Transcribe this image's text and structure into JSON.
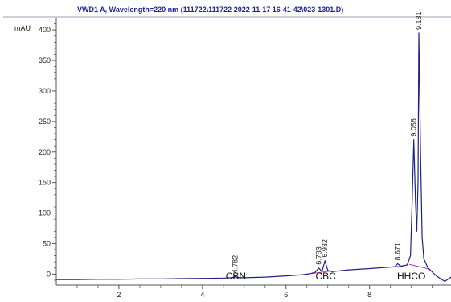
{
  "chart_data": {
    "type": "line",
    "title": "VWD1 A, Wavelength=220 nm (111722\\111722 2022-11-17 16-41-42\\023-1301.D)",
    "ylabel": "mAU",
    "xlim": [
      0.5,
      9.95
    ],
    "ylim": [
      -18,
      420
    ],
    "x_ticks": [
      2,
      4,
      6,
      8
    ],
    "y_ticks": [
      0,
      50,
      100,
      150,
      200,
      250,
      300,
      350,
      400
    ],
    "grid": false,
    "colors": {
      "title": "#1f1fa0",
      "trace": "#20208a",
      "baseline": "#c030c0",
      "axis": "#555555"
    },
    "series": [
      {
        "values": [
          [
            0.5,
            -9
          ],
          [
            1.0,
            -9
          ],
          [
            1.5,
            -8.5
          ],
          [
            2.0,
            -8.5
          ],
          [
            2.5,
            -8
          ],
          [
            3.0,
            -8
          ],
          [
            3.5,
            -7.5
          ],
          [
            4.0,
            -7
          ],
          [
            4.5,
            -6.5
          ],
          [
            4.7,
            -6
          ],
          [
            4.78,
            -4
          ],
          [
            4.85,
            -6
          ],
          [
            5.0,
            -6
          ],
          [
            5.5,
            -5
          ],
          [
            6.0,
            -3
          ],
          [
            6.4,
            -1
          ],
          [
            6.6,
            1
          ],
          [
            6.7,
            3
          ],
          [
            6.783,
            10
          ],
          [
            6.86,
            4
          ],
          [
            6.932,
            22
          ],
          [
            7.0,
            6
          ],
          [
            7.1,
            4
          ],
          [
            7.5,
            7
          ],
          [
            8.0,
            9
          ],
          [
            8.4,
            11
          ],
          [
            8.6,
            12
          ],
          [
            8.671,
            17
          ],
          [
            8.75,
            13
          ],
          [
            8.9,
            15
          ],
          [
            8.98,
            30
          ],
          [
            9.02,
            120
          ],
          [
            9.058,
            220
          ],
          [
            9.1,
            120
          ],
          [
            9.13,
            70
          ],
          [
            9.16,
            150
          ],
          [
            9.181,
            395
          ],
          [
            9.22,
            200
          ],
          [
            9.26,
            60
          ],
          [
            9.3,
            25
          ],
          [
            9.4,
            10
          ],
          [
            9.6,
            -3
          ],
          [
            9.8,
            -12
          ],
          [
            9.95,
            -5
          ]
        ]
      }
    ],
    "peaks": [
      {
        "x": 4.782,
        "y": -4,
        "label": "4.782"
      },
      {
        "x": 6.783,
        "y": 10,
        "label": "6.783"
      },
      {
        "x": 6.932,
        "y": 22,
        "label": "6.932"
      },
      {
        "x": 8.671,
        "y": 17,
        "label": "8.671"
      },
      {
        "x": 9.058,
        "y": 220,
        "label": "9.058"
      },
      {
        "x": 9.181,
        "y": 395,
        "label": "9.181"
      }
    ],
    "annotations": [
      {
        "x": 4.8,
        "label": "CBN"
      },
      {
        "x": 6.95,
        "label": "CBC"
      },
      {
        "x": 9.0,
        "label": "HHCO"
      }
    ]
  }
}
